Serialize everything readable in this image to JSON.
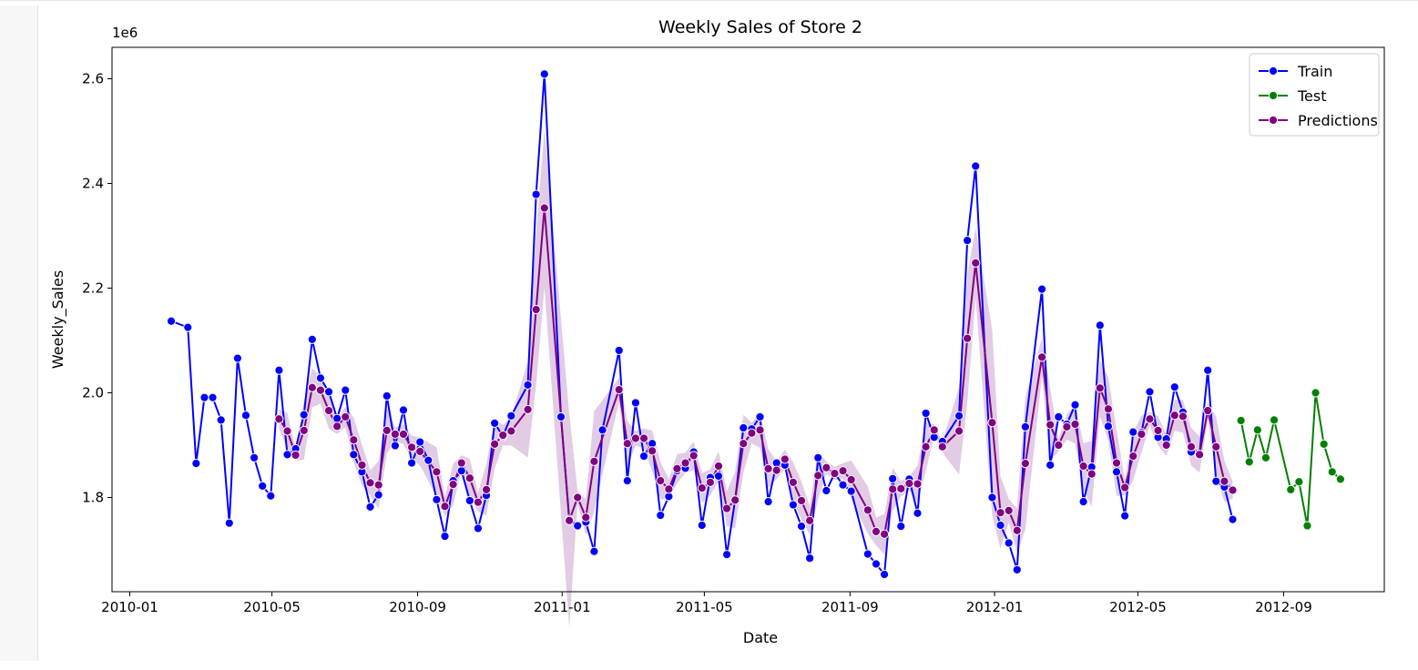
{
  "chart_data": {
    "type": "line",
    "title": "Weekly Sales of Store 2",
    "xlabel": "Date",
    "ylabel": "Weekly_Sales",
    "y_scale_label": "1e6",
    "x_axis": "date",
    "xlim": [
      "2009-12-17",
      "2012-11-25"
    ],
    "ylim": [
      1.62,
      2.66
    ],
    "x_ticks": [
      {
        "date": "2010-01-01",
        "label": "2010-01"
      },
      {
        "date": "2010-05-01",
        "label": "2010-05"
      },
      {
        "date": "2010-09-01",
        "label": "2010-09"
      },
      {
        "date": "2011-01-01",
        "label": "2011-01"
      },
      {
        "date": "2011-05-01",
        "label": "2011-05"
      },
      {
        "date": "2011-09-01",
        "label": "2011-09"
      },
      {
        "date": "2012-01-01",
        "label": "2012-01"
      },
      {
        "date": "2012-05-01",
        "label": "2012-05"
      },
      {
        "date": "2012-09-01",
        "label": "2012-09"
      }
    ],
    "y_ticks": [
      {
        "value": 1.8,
        "label": "1.8"
      },
      {
        "value": 2.0,
        "label": "2.0"
      },
      {
        "value": 2.2,
        "label": "2.2"
      },
      {
        "value": 2.4,
        "label": "2.4"
      },
      {
        "value": 2.6,
        "label": "2.6"
      }
    ],
    "grid": false,
    "legend_position": "top-right",
    "series": [
      {
        "name": "Train",
        "color": "#0000ff",
        "marker": "circle",
        "points": [
          [
            "2010-02-05",
            2.137
          ],
          [
            "2010-02-19",
            2.125
          ],
          [
            "2010-02-26",
            1.865
          ],
          [
            "2010-03-05",
            1.991
          ],
          [
            "2010-03-12",
            1.991
          ],
          [
            "2010-03-19",
            1.948
          ],
          [
            "2010-03-26",
            1.751
          ],
          [
            "2010-04-02",
            2.066
          ],
          [
            "2010-04-09",
            1.957
          ],
          [
            "2010-04-16",
            1.876
          ],
          [
            "2010-04-23",
            1.822
          ],
          [
            "2010-04-30",
            1.803
          ],
          [
            "2010-05-07",
            2.043
          ],
          [
            "2010-05-14",
            1.882
          ],
          [
            "2010-05-21",
            1.893
          ],
          [
            "2010-05-28",
            1.958
          ],
          [
            "2010-06-04",
            2.102
          ],
          [
            "2010-06-11",
            2.028
          ],
          [
            "2010-06-18",
            2.002
          ],
          [
            "2010-06-25",
            1.951
          ],
          [
            "2010-07-02",
            2.005
          ],
          [
            "2010-07-09",
            1.882
          ],
          [
            "2010-07-16",
            1.849
          ],
          [
            "2010-07-23",
            1.782
          ],
          [
            "2010-07-30",
            1.805
          ],
          [
            "2010-08-06",
            1.994
          ],
          [
            "2010-08-13",
            1.899
          ],
          [
            "2010-08-20",
            1.967
          ],
          [
            "2010-08-27",
            1.866
          ],
          [
            "2010-09-03",
            1.906
          ],
          [
            "2010-09-10",
            1.871
          ],
          [
            "2010-09-17",
            1.796
          ],
          [
            "2010-09-24",
            1.726
          ],
          [
            "2010-10-01",
            1.832
          ],
          [
            "2010-10-08",
            1.851
          ],
          [
            "2010-10-15",
            1.794
          ],
          [
            "2010-10-22",
            1.741
          ],
          [
            "2010-10-29",
            1.804
          ],
          [
            "2010-11-05",
            1.942
          ],
          [
            "2010-11-12",
            1.917
          ],
          [
            "2010-11-19",
            1.956
          ],
          [
            "2010-12-03",
            2.015
          ],
          [
            "2010-12-10",
            2.379
          ],
          [
            "2010-12-17",
            2.609
          ],
          [
            "2010-12-31",
            1.954
          ],
          [
            "2011-01-07",
            1.758
          ],
          [
            "2011-01-14",
            1.746
          ],
          [
            "2011-01-21",
            1.753
          ],
          [
            "2011-01-28",
            1.697
          ],
          [
            "2011-02-04",
            1.929
          ],
          [
            "2011-02-18",
            2.081
          ],
          [
            "2011-02-25",
            1.832
          ],
          [
            "2011-03-04",
            1.981
          ],
          [
            "2011-03-11",
            1.879
          ],
          [
            "2011-03-18",
            1.903
          ],
          [
            "2011-03-25",
            1.766
          ],
          [
            "2011-04-01",
            1.802
          ],
          [
            "2011-04-08",
            1.851
          ],
          [
            "2011-04-15",
            1.856
          ],
          [
            "2011-04-22",
            1.887
          ],
          [
            "2011-04-29",
            1.747
          ],
          [
            "2011-05-06",
            1.838
          ],
          [
            "2011-05-13",
            1.841
          ],
          [
            "2011-05-20",
            1.691
          ],
          [
            "2011-05-27",
            1.795
          ],
          [
            "2011-06-03",
            1.933
          ],
          [
            "2011-06-10",
            1.931
          ],
          [
            "2011-06-17",
            1.954
          ],
          [
            "2011-06-24",
            1.792
          ],
          [
            "2011-07-01",
            1.866
          ],
          [
            "2011-07-08",
            1.862
          ],
          [
            "2011-07-15",
            1.786
          ],
          [
            "2011-07-22",
            1.745
          ],
          [
            "2011-07-29",
            1.684
          ],
          [
            "2011-08-05",
            1.876
          ],
          [
            "2011-08-12",
            1.813
          ],
          [
            "2011-08-19",
            1.846
          ],
          [
            "2011-08-26",
            1.824
          ],
          [
            "2011-09-02",
            1.812
          ],
          [
            "2011-09-16",
            1.692
          ],
          [
            "2011-09-23",
            1.673
          ],
          [
            "2011-09-30",
            1.653
          ],
          [
            "2011-10-07",
            1.836
          ],
          [
            "2011-10-14",
            1.745
          ],
          [
            "2011-10-21",
            1.835
          ],
          [
            "2011-10-28",
            1.77
          ],
          [
            "2011-11-04",
            1.961
          ],
          [
            "2011-11-11",
            1.915
          ],
          [
            "2011-11-18",
            1.907
          ],
          [
            "2011-12-02",
            1.956
          ],
          [
            "2011-12-09",
            2.291
          ],
          [
            "2011-12-16",
            2.433
          ],
          [
            "2011-12-30",
            1.8
          ],
          [
            "2012-01-06",
            1.747
          ],
          [
            "2012-01-13",
            1.713
          ],
          [
            "2012-01-20",
            1.662
          ],
          [
            "2012-01-27",
            1.935
          ],
          [
            "2012-02-10",
            2.198
          ],
          [
            "2012-02-17",
            1.862
          ],
          [
            "2012-02-24",
            1.954
          ],
          [
            "2012-03-02",
            1.94
          ],
          [
            "2012-03-09",
            1.977
          ],
          [
            "2012-03-16",
            1.792
          ],
          [
            "2012-03-23",
            1.858
          ],
          [
            "2012-03-30",
            2.129
          ],
          [
            "2012-04-06",
            1.936
          ],
          [
            "2012-04-13",
            1.849
          ],
          [
            "2012-04-20",
            1.765
          ],
          [
            "2012-04-27",
            1.925
          ],
          [
            "2012-05-04",
            1.924
          ],
          [
            "2012-05-11",
            2.002
          ],
          [
            "2012-05-18",
            1.915
          ],
          [
            "2012-05-25",
            1.912
          ],
          [
            "2012-06-01",
            2.011
          ],
          [
            "2012-06-08",
            1.963
          ],
          [
            "2012-06-15",
            1.887
          ],
          [
            "2012-06-22",
            1.882
          ],
          [
            "2012-06-29",
            2.043
          ],
          [
            "2012-07-06",
            1.831
          ],
          [
            "2012-07-13",
            1.82
          ],
          [
            "2012-07-20",
            1.758
          ]
        ]
      },
      {
        "name": "Test",
        "color": "#008000",
        "marker": "circle",
        "points": [
          [
            "2012-07-27",
            1.947
          ],
          [
            "2012-08-03",
            1.868
          ],
          [
            "2012-08-10",
            1.929
          ],
          [
            "2012-08-17",
            1.876
          ],
          [
            "2012-08-24",
            1.948
          ],
          [
            "2012-09-07",
            1.815
          ],
          [
            "2012-09-14",
            1.83
          ],
          [
            "2012-09-21",
            1.746
          ],
          [
            "2012-09-28",
            2.0
          ],
          [
            "2012-10-05",
            1.902
          ],
          [
            "2012-10-12",
            1.849
          ],
          [
            "2012-10-19",
            1.835
          ]
        ]
      },
      {
        "name": "Predictions",
        "color": "#800080",
        "marker": "circle",
        "band_color": "#c8a0d0",
        "points": [
          [
            "2010-05-07",
            1.95
          ],
          [
            "2010-05-14",
            1.927
          ],
          [
            "2010-05-21",
            1.881
          ],
          [
            "2010-05-28",
            1.928
          ],
          [
            "2010-06-04",
            2.01
          ],
          [
            "2010-06-11",
            2.005
          ],
          [
            "2010-06-18",
            1.966
          ],
          [
            "2010-06-25",
            1.936
          ],
          [
            "2010-07-02",
            1.954
          ],
          [
            "2010-07-09",
            1.91
          ],
          [
            "2010-07-16",
            1.862
          ],
          [
            "2010-07-23",
            1.828
          ],
          [
            "2010-07-30",
            1.824
          ],
          [
            "2010-08-06",
            1.928
          ],
          [
            "2010-08-13",
            1.921
          ],
          [
            "2010-08-20",
            1.921
          ],
          [
            "2010-08-27",
            1.896
          ],
          [
            "2010-09-03",
            1.888
          ],
          [
            "2010-09-17",
            1.849
          ],
          [
            "2010-09-24",
            1.783
          ],
          [
            "2010-10-01",
            1.825
          ],
          [
            "2010-10-08",
            1.866
          ],
          [
            "2010-10-15",
            1.837
          ],
          [
            "2010-10-22",
            1.791
          ],
          [
            "2010-10-29",
            1.815
          ],
          [
            "2010-11-05",
            1.902
          ],
          [
            "2010-11-12",
            1.919
          ],
          [
            "2010-11-19",
            1.927
          ],
          [
            "2010-12-03",
            1.968
          ],
          [
            "2010-12-10",
            2.159
          ],
          [
            "2010-12-17",
            2.353
          ],
          [
            "2011-01-07",
            1.756
          ],
          [
            "2011-01-14",
            1.8
          ],
          [
            "2011-01-21",
            1.762
          ],
          [
            "2011-01-28",
            1.869
          ],
          [
            "2011-02-18",
            2.006
          ],
          [
            "2011-02-25",
            1.903
          ],
          [
            "2011-03-04",
            1.913
          ],
          [
            "2011-03-11",
            1.913
          ],
          [
            "2011-03-18",
            1.889
          ],
          [
            "2011-03-25",
            1.832
          ],
          [
            "2011-04-01",
            1.816
          ],
          [
            "2011-04-08",
            1.855
          ],
          [
            "2011-04-15",
            1.866
          ],
          [
            "2011-04-22",
            1.88
          ],
          [
            "2011-04-29",
            1.818
          ],
          [
            "2011-05-06",
            1.829
          ],
          [
            "2011-05-13",
            1.86
          ],
          [
            "2011-05-20",
            1.779
          ],
          [
            "2011-05-27",
            1.795
          ],
          [
            "2011-06-03",
            1.903
          ],
          [
            "2011-06-10",
            1.923
          ],
          [
            "2011-06-17",
            1.929
          ],
          [
            "2011-06-24",
            1.855
          ],
          [
            "2011-07-01",
            1.852
          ],
          [
            "2011-07-08",
            1.873
          ],
          [
            "2011-07-15",
            1.829
          ],
          [
            "2011-07-22",
            1.794
          ],
          [
            "2011-07-29",
            1.756
          ],
          [
            "2011-08-05",
            1.842
          ],
          [
            "2011-08-12",
            1.857
          ],
          [
            "2011-08-19",
            1.846
          ],
          [
            "2011-08-26",
            1.851
          ],
          [
            "2011-09-02",
            1.834
          ],
          [
            "2011-09-16",
            1.776
          ],
          [
            "2011-09-23",
            1.735
          ],
          [
            "2011-09-30",
            1.73
          ],
          [
            "2011-10-07",
            1.816
          ],
          [
            "2011-10-14",
            1.817
          ],
          [
            "2011-10-21",
            1.827
          ],
          [
            "2011-10-28",
            1.826
          ],
          [
            "2011-11-04",
            1.897
          ],
          [
            "2011-11-11",
            1.929
          ],
          [
            "2011-11-18",
            1.897
          ],
          [
            "2011-12-02",
            1.927
          ],
          [
            "2011-12-09",
            2.104
          ],
          [
            "2011-12-16",
            2.248
          ],
          [
            "2011-12-30",
            1.943
          ],
          [
            "2012-01-06",
            1.771
          ],
          [
            "2012-01-13",
            1.775
          ],
          [
            "2012-01-20",
            1.737
          ],
          [
            "2012-01-27",
            1.865
          ],
          [
            "2012-02-10",
            2.068
          ],
          [
            "2012-02-17",
            1.939
          ],
          [
            "2012-02-24",
            1.9
          ],
          [
            "2012-03-02",
            1.935
          ],
          [
            "2012-03-09",
            1.94
          ],
          [
            "2012-03-16",
            1.86
          ],
          [
            "2012-03-23",
            1.845
          ],
          [
            "2012-03-30",
            2.009
          ],
          [
            "2012-04-06",
            1.969
          ],
          [
            "2012-04-13",
            1.866
          ],
          [
            "2012-04-20",
            1.819
          ],
          [
            "2012-04-27",
            1.879
          ],
          [
            "2012-05-04",
            1.921
          ],
          [
            "2012-05-11",
            1.95
          ],
          [
            "2012-05-18",
            1.928
          ],
          [
            "2012-05-25",
            1.9
          ],
          [
            "2012-06-01",
            1.957
          ],
          [
            "2012-06-08",
            1.955
          ],
          [
            "2012-06-15",
            1.897
          ],
          [
            "2012-06-22",
            1.882
          ],
          [
            "2012-06-29",
            1.966
          ],
          [
            "2012-07-06",
            1.897
          ],
          [
            "2012-07-13",
            1.831
          ],
          [
            "2012-07-20",
            1.814
          ]
        ]
      }
    ]
  }
}
